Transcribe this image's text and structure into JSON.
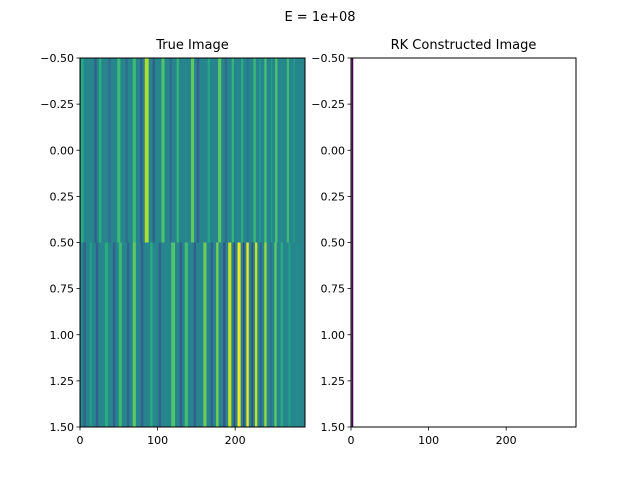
{
  "figure": {
    "suptitle": "E = 1e+08"
  },
  "colors": {
    "background": "#ffffff",
    "axis": "#000000",
    "colormap": "viridis",
    "rk_line": "#440154"
  },
  "chart_data": [
    {
      "type": "heatmap",
      "title": "True Image",
      "xlabel": "",
      "ylabel": "",
      "xlim": [
        0,
        290
      ],
      "ylim": [
        1.5,
        -0.5
      ],
      "xticks": [
        "0",
        "100",
        "200"
      ],
      "xtick_values": [
        0,
        100,
        200
      ],
      "yticks": [
        "−0.50",
        "−0.25",
        "0.00",
        "0.25",
        "0.50",
        "0.75",
        "1.00",
        "1.25",
        "1.50"
      ],
      "ytick_values": [
        -0.5,
        -0.25,
        0.0,
        0.25,
        0.5,
        0.75,
        1.0,
        1.25,
        1.5
      ],
      "grid": false,
      "colormap": "viridis",
      "rows": [
        {
          "y_range": [
            -0.5,
            0.5
          ],
          "background_level": 0.45,
          "stripes": [
            {
              "x": 3,
              "width": 3,
              "level": 0.62
            },
            {
              "x": 20,
              "width": 3,
              "level": 0.3
            },
            {
              "x": 26,
              "width": 3,
              "level": 0.63
            },
            {
              "x": 38,
              "width": 3,
              "level": 0.35
            },
            {
              "x": 50,
              "width": 4,
              "level": 0.68
            },
            {
              "x": 60,
              "width": 3,
              "level": 0.35
            },
            {
              "x": 70,
              "width": 4,
              "level": 0.68
            },
            {
              "x": 79,
              "width": 3,
              "level": 0.3
            },
            {
              "x": 86,
              "width": 5,
              "level": 0.88
            },
            {
              "x": 95,
              "width": 3,
              "level": 0.3
            },
            {
              "x": 107,
              "width": 4,
              "level": 0.72
            },
            {
              "x": 117,
              "width": 3,
              "level": 0.35
            },
            {
              "x": 126,
              "width": 3,
              "level": 0.65
            },
            {
              "x": 145,
              "width": 4,
              "level": 0.75
            },
            {
              "x": 152,
              "width": 3,
              "level": 0.3
            },
            {
              "x": 166,
              "width": 3,
              "level": 0.6
            },
            {
              "x": 180,
              "width": 4,
              "level": 0.75
            },
            {
              "x": 188,
              "width": 3,
              "level": 0.35
            },
            {
              "x": 197,
              "width": 3,
              "level": 0.65
            },
            {
              "x": 209,
              "width": 3,
              "level": 0.62
            },
            {
              "x": 216,
              "width": 3,
              "level": 0.4
            },
            {
              "x": 225,
              "width": 3,
              "level": 0.68
            },
            {
              "x": 232,
              "width": 2,
              "level": 0.55
            },
            {
              "x": 239,
              "width": 3,
              "level": 0.7
            },
            {
              "x": 247,
              "width": 2,
              "level": 0.55
            },
            {
              "x": 253,
              "width": 3,
              "level": 0.72
            },
            {
              "x": 260,
              "width": 2,
              "level": 0.5
            },
            {
              "x": 268,
              "width": 3,
              "level": 0.68
            },
            {
              "x": 276,
              "width": 2,
              "level": 0.55
            },
            {
              "x": 283,
              "width": 3,
              "level": 0.45
            }
          ]
        },
        {
          "y_range": [
            0.5,
            1.5
          ],
          "background_level": 0.45,
          "stripes": [
            {
              "x": 6,
              "width": 3,
              "level": 0.3
            },
            {
              "x": 14,
              "width": 3,
              "level": 0.55
            },
            {
              "x": 22,
              "width": 3,
              "level": 0.3
            },
            {
              "x": 34,
              "width": 4,
              "level": 0.62
            },
            {
              "x": 44,
              "width": 3,
              "level": 0.3
            },
            {
              "x": 52,
              "width": 4,
              "level": 0.68
            },
            {
              "x": 62,
              "width": 3,
              "level": 0.32
            },
            {
              "x": 70,
              "width": 4,
              "level": 0.75
            },
            {
              "x": 80,
              "width": 3,
              "level": 0.3
            },
            {
              "x": 92,
              "width": 3,
              "level": 0.62
            },
            {
              "x": 103,
              "width": 3,
              "level": 0.3
            },
            {
              "x": 120,
              "width": 5,
              "level": 0.72
            },
            {
              "x": 130,
              "width": 3,
              "level": 0.3
            },
            {
              "x": 137,
              "width": 4,
              "level": 0.7
            },
            {
              "x": 148,
              "width": 3,
              "level": 0.3
            },
            {
              "x": 161,
              "width": 4,
              "level": 0.78
            },
            {
              "x": 170,
              "width": 3,
              "level": 0.3
            },
            {
              "x": 177,
              "width": 3,
              "level": 0.8
            },
            {
              "x": 186,
              "width": 3,
              "level": 0.25
            },
            {
              "x": 193,
              "width": 4,
              "level": 0.92
            },
            {
              "x": 199,
              "width": 2,
              "level": 0.2
            },
            {
              "x": 205,
              "width": 4,
              "level": 0.98
            },
            {
              "x": 211,
              "width": 2,
              "level": 0.2
            },
            {
              "x": 216,
              "width": 3,
              "level": 0.98
            },
            {
              "x": 222,
              "width": 2,
              "level": 0.22
            },
            {
              "x": 227,
              "width": 3,
              "level": 0.92
            },
            {
              "x": 233,
              "width": 2,
              "level": 0.3
            },
            {
              "x": 239,
              "width": 3,
              "level": 0.85
            },
            {
              "x": 246,
              "width": 2,
              "level": 0.35
            },
            {
              "x": 252,
              "width": 3,
              "level": 0.75
            },
            {
              "x": 260,
              "width": 3,
              "level": 0.62
            },
            {
              "x": 270,
              "width": 3,
              "level": 0.55
            },
            {
              "x": 280,
              "width": 3,
              "level": 0.48
            }
          ]
        }
      ]
    },
    {
      "type": "heatmap",
      "title": "RK Constructed Image",
      "xlabel": "",
      "ylabel": "",
      "xlim": [
        0,
        290
      ],
      "ylim": [
        1.5,
        -0.5
      ],
      "xticks": [
        "0",
        "100",
        "200"
      ],
      "xtick_values": [
        0,
        100,
        200
      ],
      "yticks": [
        "−0.50",
        "−0.25",
        "0.00",
        "0.25",
        "0.50",
        "0.75",
        "1.00",
        "1.25",
        "1.50"
      ],
      "ytick_values": [
        -0.5,
        -0.25,
        0.0,
        0.25,
        0.5,
        0.75,
        1.0,
        1.25,
        1.5
      ],
      "grid": false,
      "background": "#ffffff",
      "line": {
        "x": 1.5,
        "width": 1
      }
    }
  ]
}
